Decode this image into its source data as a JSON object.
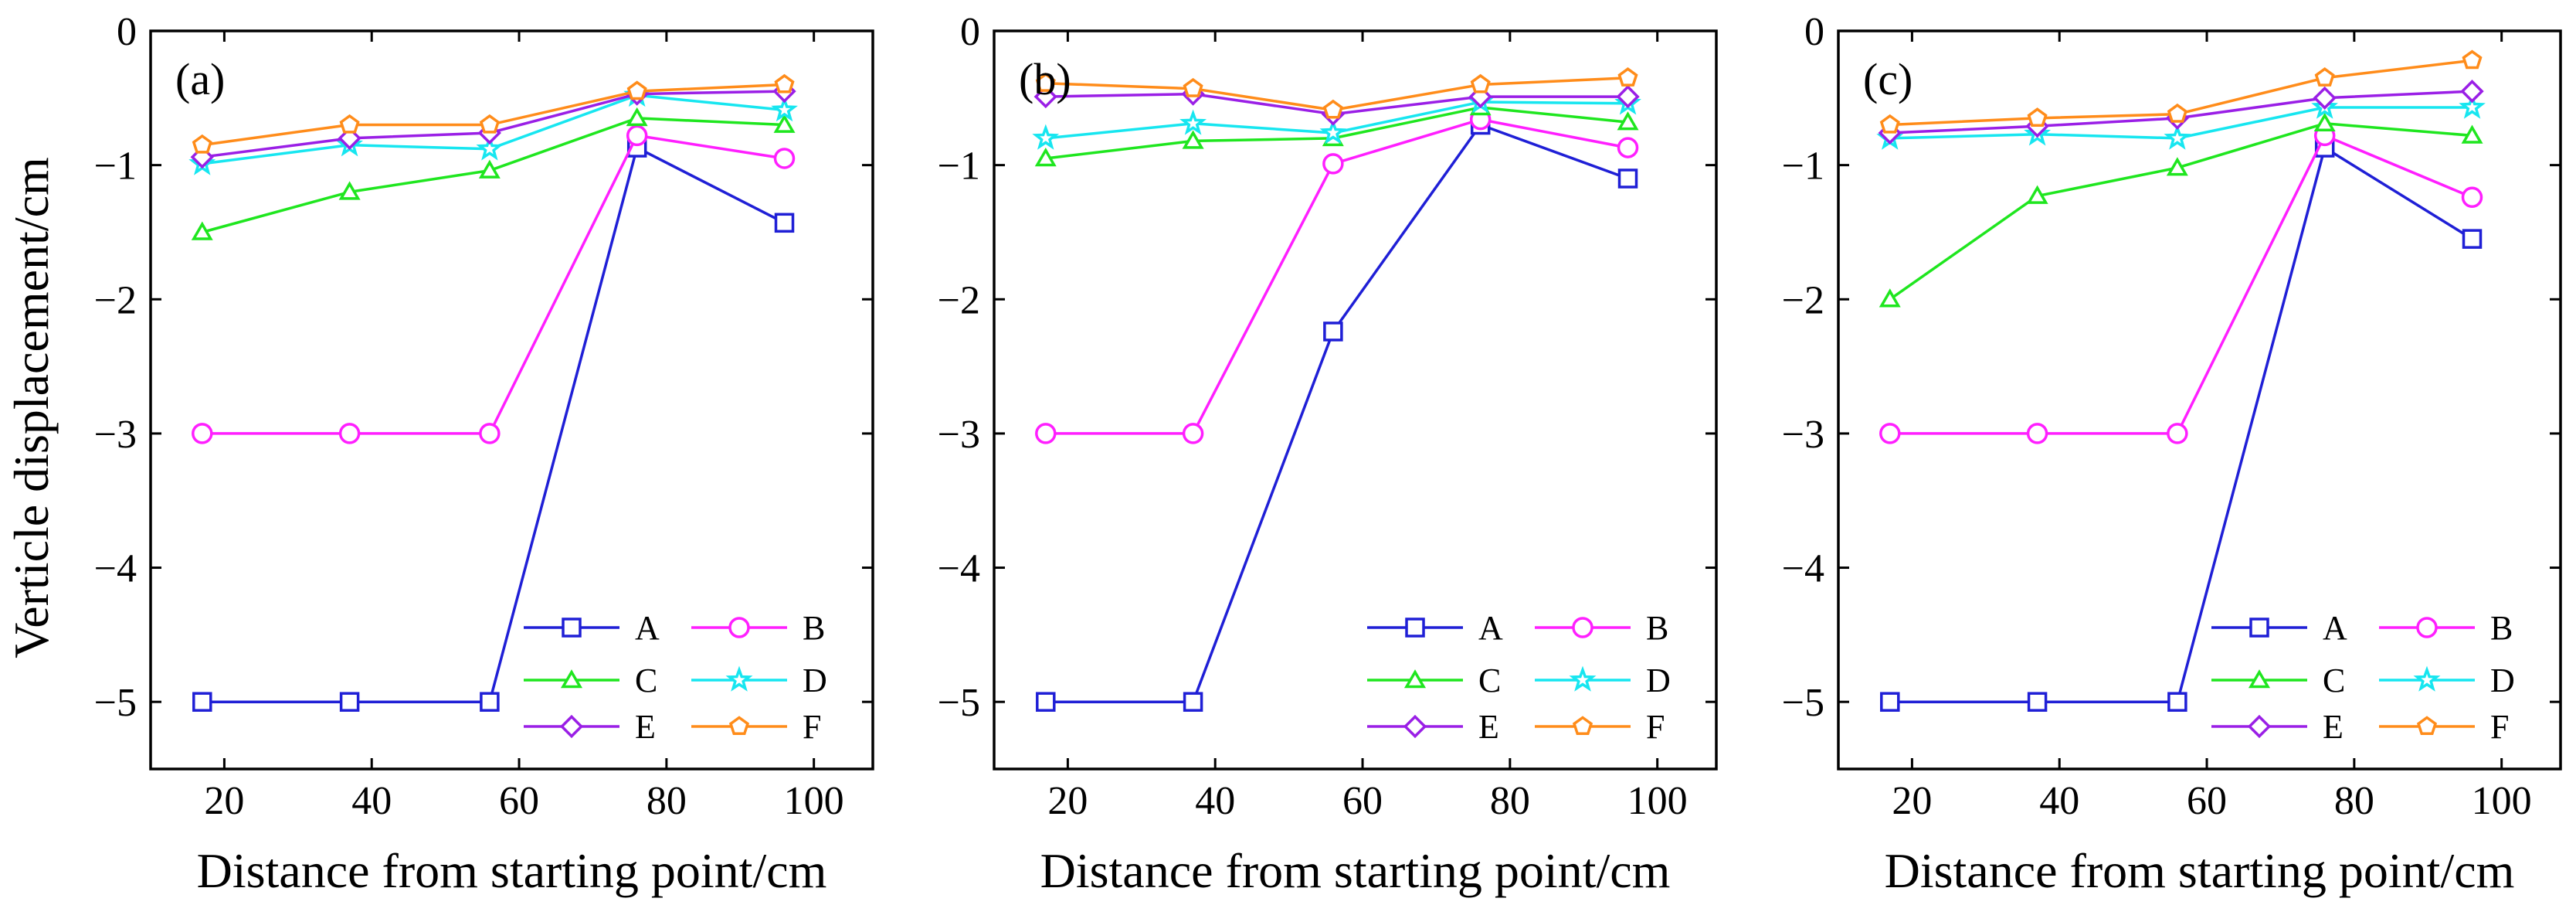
{
  "chart_data": [
    {
      "type": "line",
      "panel_label": "(a)",
      "xlabel": "Distance from starting point/cm",
      "ylabel": "Verticle displacement/cm",
      "xlim": [
        10,
        108
      ],
      "ylim": [
        -5.5,
        0
      ],
      "xticks": [
        20,
        40,
        60,
        80,
        100
      ],
      "yticks": [
        0,
        -1,
        -2,
        -3,
        -4,
        -5
      ],
      "xtick_labels": [
        "20",
        "40",
        "60",
        "80",
        "100"
      ],
      "ytick_labels": [
        "0",
        "−1",
        "−2",
        "−3",
        "−4",
        "−5"
      ],
      "x": [
        17,
        37,
        56,
        76,
        96
      ],
      "legend_position": "bottom-right",
      "series": [
        {
          "name": "A",
          "color": "#1f1fd6",
          "marker": "square",
          "values": [
            -5.0,
            -5.0,
            -5.0,
            -0.87,
            -1.43
          ]
        },
        {
          "name": "B",
          "color": "#ff1fff",
          "marker": "circle",
          "values": [
            -3.0,
            -3.0,
            -3.0,
            -0.78,
            -0.95
          ]
        },
        {
          "name": "C",
          "color": "#1fe61f",
          "marker": "triangle",
          "values": [
            -1.5,
            -1.2,
            -1.04,
            -0.65,
            -0.7
          ]
        },
        {
          "name": "D",
          "color": "#17e6f0",
          "marker": "star",
          "values": [
            -0.99,
            -0.85,
            -0.88,
            -0.48,
            -0.59
          ]
        },
        {
          "name": "E",
          "color": "#9a1fe6",
          "marker": "diamond",
          "values": [
            -0.94,
            -0.8,
            -0.76,
            -0.47,
            -0.45
          ]
        },
        {
          "name": "F",
          "color": "#ff8c1a",
          "marker": "pentagon",
          "values": [
            -0.85,
            -0.7,
            -0.7,
            -0.45,
            -0.4
          ]
        }
      ]
    },
    {
      "type": "line",
      "panel_label": "(b)",
      "xlabel": "Distance from starting point/cm",
      "ylabel": "",
      "xlim": [
        10,
        108
      ],
      "ylim": [
        -5.5,
        0
      ],
      "xticks": [
        20,
        40,
        60,
        80,
        100
      ],
      "yticks": [
        0,
        -1,
        -2,
        -3,
        -4,
        -5
      ],
      "xtick_labels": [
        "20",
        "40",
        "60",
        "80",
        "100"
      ],
      "ytick_labels": [
        "0",
        "−1",
        "−2",
        "−3",
        "−4",
        "−5"
      ],
      "x": [
        17,
        37,
        56,
        76,
        96
      ],
      "legend_position": "bottom-right",
      "series": [
        {
          "name": "A",
          "color": "#1f1fd6",
          "marker": "square",
          "values": [
            -5.0,
            -5.0,
            -2.24,
            -0.7,
            -1.1
          ]
        },
        {
          "name": "B",
          "color": "#ff1fff",
          "marker": "circle",
          "values": [
            -3.0,
            -3.0,
            -0.99,
            -0.66,
            -0.87
          ]
        },
        {
          "name": "C",
          "color": "#1fe61f",
          "marker": "triangle",
          "values": [
            -0.95,
            -0.82,
            -0.8,
            -0.57,
            -0.68
          ]
        },
        {
          "name": "D",
          "color": "#17e6f0",
          "marker": "star",
          "values": [
            -0.8,
            -0.69,
            -0.76,
            -0.53,
            -0.54
          ]
        },
        {
          "name": "E",
          "color": "#9a1fe6",
          "marker": "diamond",
          "values": [
            -0.49,
            -0.47,
            -0.62,
            -0.49,
            -0.49
          ]
        },
        {
          "name": "F",
          "color": "#ff8c1a",
          "marker": "pentagon",
          "values": [
            -0.39,
            -0.43,
            -0.59,
            -0.4,
            -0.35
          ]
        }
      ]
    },
    {
      "type": "line",
      "panel_label": "(c)",
      "xlabel": "Distance from starting point/cm",
      "ylabel": "",
      "xlim": [
        10,
        108
      ],
      "ylim": [
        -5.5,
        0
      ],
      "xticks": [
        20,
        40,
        60,
        80,
        100
      ],
      "yticks": [
        0,
        -1,
        -2,
        -3,
        -4,
        -5
      ],
      "xtick_labels": [
        "20",
        "40",
        "60",
        "80",
        "100"
      ],
      "ytick_labels": [
        "0",
        "−1",
        "−2",
        "−3",
        "−4",
        "−5"
      ],
      "x": [
        17,
        37,
        56,
        76,
        96
      ],
      "legend_position": "bottom-right",
      "series": [
        {
          "name": "A",
          "color": "#1f1fd6",
          "marker": "square",
          "values": [
            -5.0,
            -5.0,
            -5.0,
            -0.87,
            -1.55
          ]
        },
        {
          "name": "B",
          "color": "#ff1fff",
          "marker": "circle",
          "values": [
            -3.0,
            -3.0,
            -3.0,
            -0.78,
            -1.24
          ]
        },
        {
          "name": "C",
          "color": "#1fe61f",
          "marker": "triangle",
          "values": [
            -2.0,
            -1.23,
            -1.02,
            -0.69,
            -0.78
          ]
        },
        {
          "name": "D",
          "color": "#17e6f0",
          "marker": "star",
          "values": [
            -0.8,
            -0.77,
            -0.8,
            -0.57,
            -0.57
          ]
        },
        {
          "name": "E",
          "color": "#9a1fe6",
          "marker": "diamond",
          "values": [
            -0.76,
            -0.71,
            -0.65,
            -0.5,
            -0.45
          ]
        },
        {
          "name": "F",
          "color": "#ff8c1a",
          "marker": "pentagon",
          "values": [
            -0.7,
            -0.65,
            -0.62,
            -0.35,
            -0.22
          ]
        }
      ]
    }
  ]
}
